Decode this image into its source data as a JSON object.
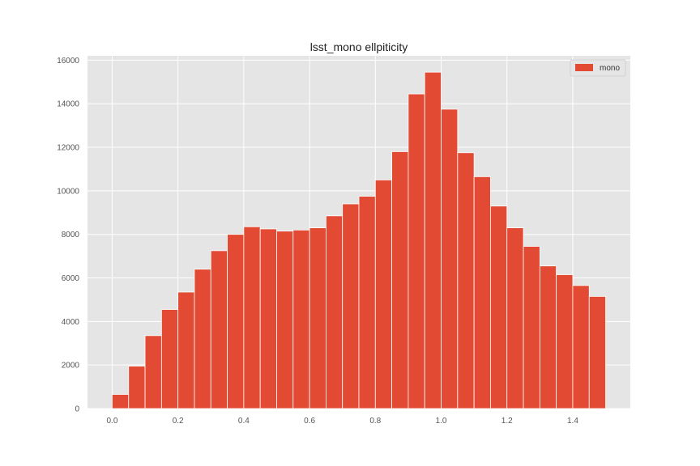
{
  "chart_data": {
    "type": "bar",
    "title": "lsst_mono ellpiticity",
    "xlabel": "",
    "ylabel": "",
    "xlim": [
      -0.075,
      1.575
    ],
    "ylim": [
      0,
      16200
    ],
    "bin_edges": [
      0.0,
      0.05,
      0.1,
      0.15,
      0.2,
      0.25,
      0.3,
      0.35,
      0.4,
      0.45,
      0.5,
      0.55,
      0.6,
      0.65,
      0.7,
      0.75,
      0.8,
      0.85,
      0.9,
      0.95,
      1.0,
      1.05,
      1.1,
      1.15,
      1.2,
      1.25,
      1.3,
      1.35,
      1.4,
      1.45,
      1.5
    ],
    "series": [
      {
        "name": "mono",
        "color": "#E24A33",
        "values": [
          650,
          1950,
          3350,
          4550,
          5350,
          6400,
          7250,
          8000,
          8350,
          8250,
          8150,
          8200,
          8300,
          8850,
          9400,
          9750,
          10500,
          11800,
          14450,
          15450,
          13750,
          11750,
          10650,
          9300,
          8300,
          7450,
          6550,
          6150,
          5650,
          5150
        ]
      }
    ],
    "x_ticks": [
      0.0,
      0.2,
      0.4,
      0.6,
      0.8,
      1.0,
      1.2,
      1.4
    ],
    "x_tick_labels": [
      "0.0",
      "0.2",
      "0.4",
      "0.6",
      "0.8",
      "1.0",
      "1.2",
      "1.4"
    ],
    "y_ticks": [
      0,
      2000,
      4000,
      6000,
      8000,
      10000,
      12000,
      14000,
      16000
    ],
    "y_tick_labels": [
      "0",
      "2000",
      "4000",
      "6000",
      "8000",
      "10000",
      "12000",
      "14000",
      "16000"
    ],
    "grid": true,
    "legend_position": "top-right",
    "plot_background": "#E5E5E5",
    "grid_color": "#FFFFFF",
    "bar_edge_color": "#FFFFFF"
  }
}
